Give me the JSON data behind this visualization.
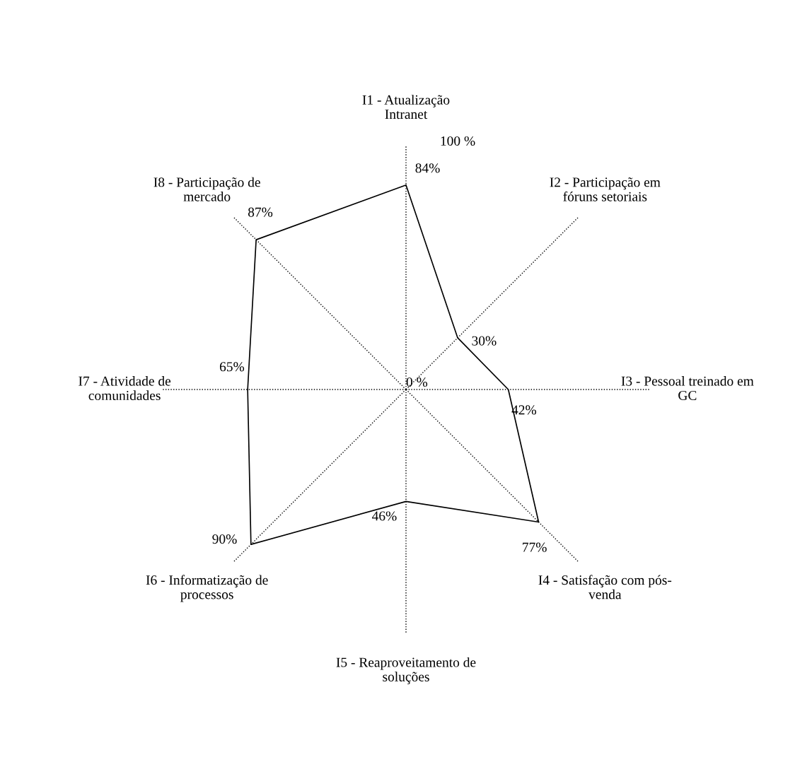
{
  "chart_data": {
    "type": "radar",
    "categories": [
      "I1 - Atualização Intranet",
      "I2 - Participação em fóruns setoriais",
      "I3 - Pessoal treinado em GC",
      "I4 - Satisfação com pós-venda",
      "I5 - Reaproveitamento de soluções",
      "I6 - Informatização de processos",
      "I7 - Atividade de comunidades",
      "I8 - Participação de mercado"
    ],
    "series": [
      {
        "color": "#000000",
        "values": [
          84,
          30,
          42,
          77,
          46,
          90,
          65,
          87
        ],
        "value_labels": [
          "84%",
          "30%",
          "42%",
          "77%",
          "46%",
          "90%",
          "65%",
          "87%"
        ]
      }
    ],
    "ylim": [
      0,
      100
    ],
    "yticks": [
      {
        "value": 0,
        "label": "0 %"
      },
      {
        "value": 100,
        "label": "100 %"
      }
    ],
    "grid": "x",
    "line_style": "solid",
    "marker": "none"
  }
}
